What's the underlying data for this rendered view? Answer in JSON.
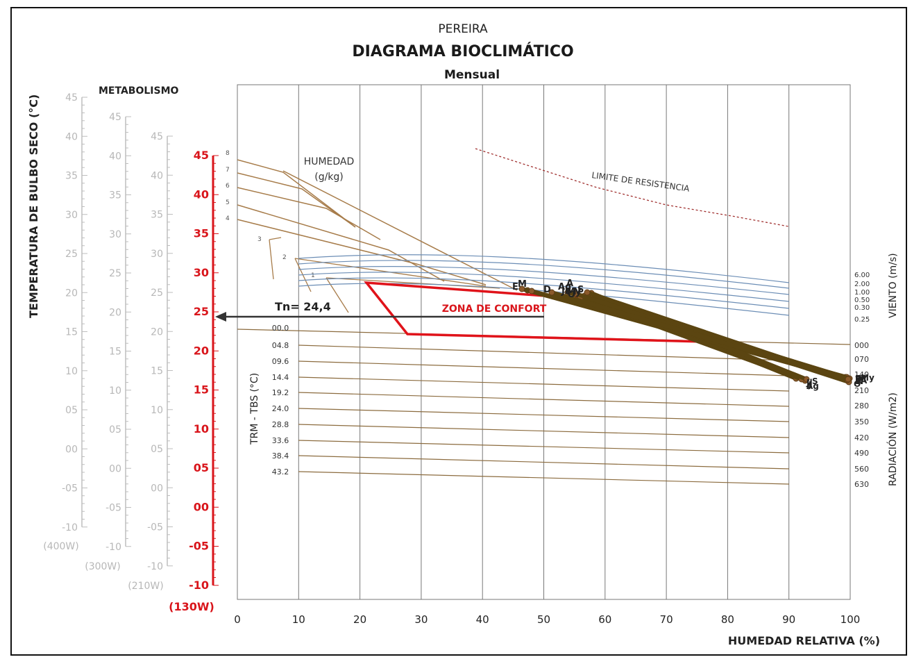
{
  "chart_data": {
    "type": "line",
    "city": "PEREIRA",
    "title": "DIAGRAMA BIOCLIMÁTICO",
    "subtitle": "Mensual",
    "xlabel": "HUMEDAD RELATIVA (%)",
    "ylabel": "TEMPERATURA DE BULBO SECO (°C)",
    "xlim": [
      0,
      100
    ],
    "ylim": [
      -10,
      45
    ],
    "x_ticks": [
      0,
      10,
      20,
      30,
      40,
      50,
      60,
      70,
      80,
      90,
      100
    ],
    "metabolism_label": "METABOLISMO",
    "metabolism_scales": [
      {
        "name": "(400W)",
        "ticks": [
          "45",
          "40",
          "35",
          "30",
          "25",
          "20",
          "15",
          "10",
          "05",
          "00",
          "-05",
          "-10"
        ]
      },
      {
        "name": "(300W)",
        "ticks": [
          "45",
          "40",
          "35",
          "30",
          "25",
          "20",
          "15",
          "10",
          "05",
          "00",
          "-05",
          "-10"
        ]
      },
      {
        "name": "(210W)",
        "ticks": [
          "45",
          "40",
          "35",
          "30",
          "25",
          "20",
          "15",
          "10",
          "05",
          "00",
          "-05",
          "-10"
        ]
      },
      {
        "name": "(130W)",
        "ticks": [
          "45",
          "40",
          "35",
          "30",
          "25",
          "20",
          "15",
          "10",
          "05",
          "00",
          "-05",
          "-10"
        ]
      }
    ],
    "neutral_temperature": {
      "label": "Tn= 24,4",
      "value": 24.4
    },
    "comfort_zone": {
      "label": "ZONA DE CONFORT",
      "polygon": [
        [
          21,
          28.5
        ],
        [
          55,
          26.5
        ],
        [
          65,
          25.5
        ],
        [
          77,
          21
        ],
        [
          28,
          22
        ]
      ]
    },
    "resistance_limit": {
      "label": "LIMITE DE RESISTENCIA",
      "points": [
        [
          39,
          38.5
        ],
        [
          50,
          36.5
        ],
        [
          60,
          34.5
        ],
        [
          70,
          32.5
        ],
        [
          80,
          30.5
        ],
        [
          90,
          28.8
        ]
      ]
    },
    "humidity_lines": {
      "label_line1": "HUMEDAD",
      "label_line2": "(g/kg)",
      "labels": [
        "8",
        "7",
        "6",
        "5",
        "4",
        "3",
        "2",
        "1"
      ]
    },
    "wind": {
      "label": "VIENTO  (m/s)",
      "values": [
        "6.00",
        "2.00",
        "1.00",
        "0.50",
        "0.30",
        "0.25"
      ]
    },
    "radiation": {
      "label": "RADIACIÓN (W/m2)",
      "values": [
        "000",
        "070",
        "140",
        "210",
        "280",
        "350",
        "420",
        "490",
        "560",
        "630"
      ]
    },
    "trm_tbs": {
      "label": "TRM - TBS (°C)",
      "values": [
        "00.0",
        "04.8",
        "09.6",
        "14.4",
        "19.2",
        "24.0",
        "28.8",
        "33.6",
        "38.4",
        "43.2"
      ]
    },
    "series": [
      {
        "name": "E",
        "values": [
          [
            47,
            27.5
          ],
          [
            99.5,
            16.7
          ]
        ]
      },
      {
        "name": "F",
        "values": [
          [
            46,
            27.8
          ],
          [
            99.5,
            16.5
          ]
        ]
      },
      {
        "name": "M",
        "values": [
          [
            48,
            27.7
          ],
          [
            100,
            16.3
          ]
        ]
      },
      {
        "name": "A",
        "values": [
          [
            54,
            27.2
          ],
          [
            100,
            16.0
          ]
        ]
      },
      {
        "name": "My",
        "values": [
          [
            56,
            26.8
          ],
          [
            100,
            16.2
          ]
        ]
      },
      {
        "name": "J",
        "values": [
          [
            57,
            27.0
          ],
          [
            92,
            16.2
          ]
        ]
      },
      {
        "name": "Jl",
        "values": [
          [
            55,
            27.1
          ],
          [
            93,
            16.0
          ]
        ]
      },
      {
        "name": "Ag",
        "values": [
          [
            54.5,
            27.0
          ],
          [
            92.5,
            16.2
          ]
        ]
      },
      {
        "name": "S",
        "values": [
          [
            56,
            27.3
          ],
          [
            93,
            16.5
          ]
        ]
      },
      {
        "name": "O",
        "values": [
          [
            54,
            26.9
          ],
          [
            99.8,
            16.0
          ]
        ]
      },
      {
        "name": "N",
        "values": [
          [
            55,
            27.2
          ],
          [
            99.5,
            16.2
          ]
        ]
      },
      {
        "name": "D",
        "values": [
          [
            51,
            27.2
          ],
          [
            100,
            16.1
          ]
        ]
      }
    ],
    "month_labels_top": [
      "E",
      "M",
      "D",
      "Ag",
      "Jl",
      "S",
      "A",
      "My",
      "N",
      "O"
    ],
    "month_labels_right": [
      "E",
      "F",
      "M",
      "A",
      "My",
      "O",
      "N",
      "D"
    ],
    "month_labels_right2": [
      "S",
      "Jl",
      "Ag",
      "J"
    ]
  }
}
